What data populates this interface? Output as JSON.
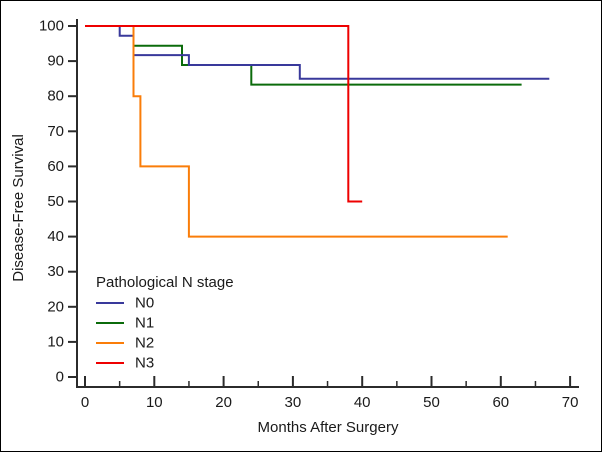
{
  "window": {
    "background": "#ffffff",
    "border_color": "#000000",
    "axis_color": "#2b2b2b",
    "text_color": "#1a1a1a"
  },
  "chart_data": {
    "type": "line",
    "subtype": "kaplan-meier-step",
    "title": "",
    "xlabel": "Months After Surgery",
    "ylabel": "Disease-Free Survival",
    "xlim": [
      0,
      70
    ],
    "ylim": [
      0,
      100
    ],
    "grid": false,
    "x_major_ticks": [
      0,
      10,
      20,
      30,
      40,
      50,
      60,
      70
    ],
    "x_minor_ticks": [
      5,
      15,
      25,
      35,
      45,
      55,
      65
    ],
    "y_major_ticks": [
      0,
      10,
      20,
      30,
      40,
      50,
      60,
      70,
      80,
      90,
      100
    ],
    "legend": {
      "title": "Pathological N stage",
      "position": "inside-lower-left"
    },
    "series": [
      {
        "name": "N0",
        "color": "#39399b",
        "points": [
          [
            0,
            100
          ],
          [
            5,
            100
          ],
          [
            5,
            97.2
          ],
          [
            7,
            97.2
          ],
          [
            7,
            91.7
          ],
          [
            15,
            91.7
          ],
          [
            15,
            88.9
          ],
          [
            31,
            88.9
          ],
          [
            31,
            85
          ],
          [
            67,
            85
          ]
        ]
      },
      {
        "name": "N1",
        "color": "#0b6b0b",
        "points": [
          [
            0,
            100
          ],
          [
            7,
            100
          ],
          [
            7,
            94.4
          ],
          [
            14,
            94.4
          ],
          [
            14,
            88.9
          ],
          [
            24,
            88.9
          ],
          [
            24,
            83.3
          ],
          [
            63,
            83.3
          ]
        ]
      },
      {
        "name": "N2",
        "color": "#fa7d09",
        "points": [
          [
            0,
            100
          ],
          [
            7,
            100
          ],
          [
            7,
            80
          ],
          [
            8,
            80
          ],
          [
            8,
            60
          ],
          [
            15,
            60
          ],
          [
            15,
            40
          ],
          [
            61,
            40
          ]
        ]
      },
      {
        "name": "N3",
        "color": "#ee0000",
        "points": [
          [
            0,
            100
          ],
          [
            38,
            100
          ],
          [
            38,
            50
          ],
          [
            40,
            50
          ]
        ]
      }
    ]
  }
}
